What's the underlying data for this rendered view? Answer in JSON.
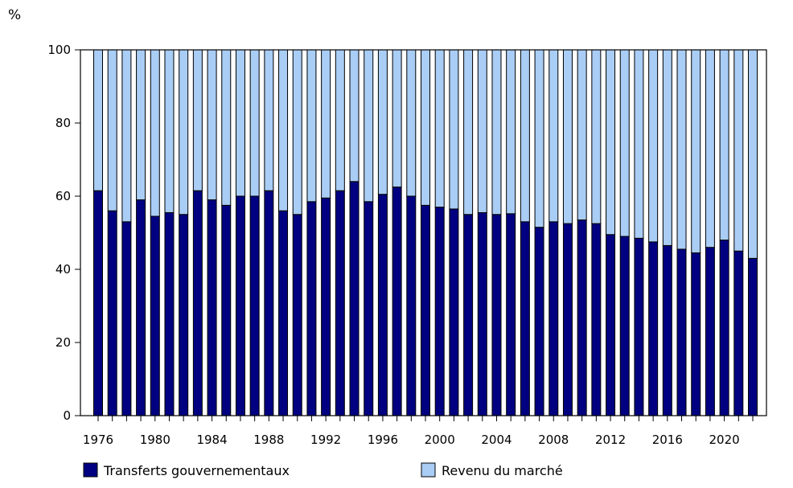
{
  "chart_data": {
    "type": "bar",
    "stacked": true,
    "y_unit": "%",
    "ylim": [
      0,
      100
    ],
    "y_ticks": [
      0,
      20,
      40,
      60,
      80,
      100
    ],
    "x_tick_labels": [
      "1976",
      "1980",
      "1984",
      "1988",
      "1992",
      "1996",
      "2000",
      "2004",
      "2008",
      "2012",
      "2016",
      "2020"
    ],
    "categories": [
      1976,
      1977,
      1978,
      1979,
      1980,
      1981,
      1982,
      1983,
      1984,
      1985,
      1986,
      1987,
      1988,
      1989,
      1990,
      1991,
      1992,
      1993,
      1994,
      1995,
      1996,
      1997,
      1998,
      1999,
      2000,
      2001,
      2002,
      2003,
      2004,
      2005,
      2006,
      2007,
      2008,
      2009,
      2010,
      2011,
      2012,
      2013,
      2014,
      2015,
      2016,
      2017,
      2018,
      2019,
      2020,
      2021,
      2022
    ],
    "series": [
      {
        "name": "Transferts gouvernementaux",
        "color": "#000080",
        "values": [
          61.5,
          56,
          53,
          59,
          54.5,
          55.5,
          55,
          61.5,
          59,
          57.5,
          60,
          60,
          61.5,
          56,
          55,
          58.5,
          59.5,
          61.5,
          64,
          58.5,
          60.5,
          62.5,
          60,
          57.5,
          57,
          56.5,
          55,
          55.5,
          55,
          55.2,
          53,
          51.5,
          53,
          52.5,
          53.5,
          52.5,
          49.5,
          49,
          48.5,
          47.5,
          46.5,
          45.5,
          44.5,
          46,
          48,
          45,
          43
        ]
      },
      {
        "name": "Revenu du marché",
        "color": "#a9cdf5",
        "values": [
          38.5,
          44,
          47,
          41,
          45.5,
          44.5,
          45,
          38.5,
          41,
          42.5,
          40,
          40,
          38.5,
          44,
          45,
          41.5,
          40.5,
          38.5,
          36,
          41.5,
          39.5,
          37.5,
          40,
          42.5,
          43,
          43.5,
          45,
          44.5,
          45,
          44.8,
          47,
          48.5,
          47,
          47.5,
          46.5,
          47.5,
          50.5,
          51,
          51.5,
          52.5,
          53.5,
          54.5,
          55.5,
          54,
          52,
          55,
          57
        ]
      }
    ],
    "legend_position": "bottom",
    "grid": false
  }
}
